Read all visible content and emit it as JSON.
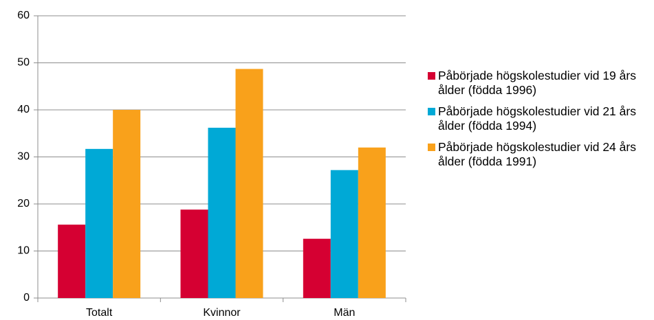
{
  "chart_data": {
    "type": "bar",
    "categories": [
      "Totalt",
      "Kvinnor",
      "Män"
    ],
    "series": [
      {
        "name": "Påbörjade högskolestudier vid 19 års ålder (födda 1996)",
        "color": "#d50032",
        "values": [
          15.6,
          18.8,
          12.6
        ]
      },
      {
        "name": "Påbörjade högskolestudier vid 21 års ålder (födda 1994)",
        "color": "#00a9d6",
        "values": [
          31.7,
          36.2,
          27.2
        ]
      },
      {
        "name": "Påbörjade högskolestudier vid 24 års ålder (födda 1991)",
        "color": "#f9a11b",
        "values": [
          40,
          48.7,
          32
        ]
      }
    ],
    "ylim": [
      0,
      60
    ],
    "yticks": [
      0,
      10,
      20,
      30,
      40,
      50,
      60
    ],
    "grid": true,
    "legend": "right"
  }
}
